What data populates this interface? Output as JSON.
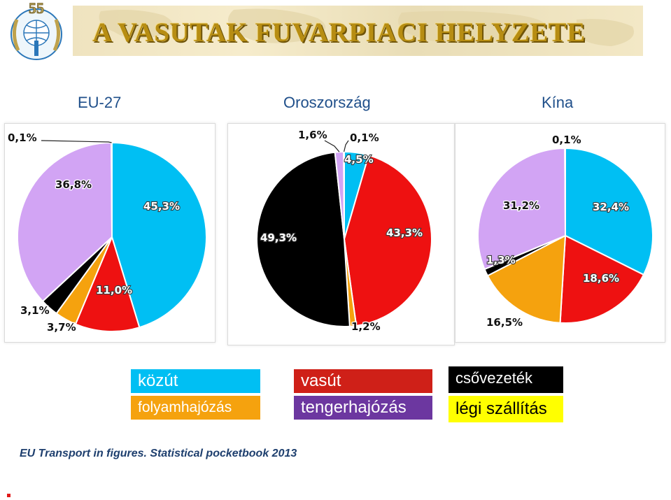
{
  "header": {
    "logo_number": "55",
    "title": "A VASUTAK FUVARPIACI HELYZETE"
  },
  "colors": {
    "kozut": "#00bff3",
    "vasut": "#ee1111",
    "csovezetek": "#000000",
    "folyamhajozas": "#f5a20e",
    "tengerhajozas": "#6c37a0",
    "legi": "#ffff00",
    "eu_other": "#d2a4f4"
  },
  "chart_data": [
    {
      "type": "pie",
      "title": "EU-27",
      "slices": [
        {
          "label": "közút",
          "value": 45.3,
          "text": "45,3%"
        },
        {
          "label": "vasút",
          "value": 11.0,
          "text": "11,0%"
        },
        {
          "label": "folyamhajózás",
          "value": 3.7,
          "text": "3,7%"
        },
        {
          "label": "csővezeték",
          "value": 3.1,
          "text": "3,1%"
        },
        {
          "label": "",
          "value": 36.8,
          "text": "36,8%"
        },
        {
          "label": "légi szállítás",
          "value": 0.1,
          "text": "0,1%"
        }
      ]
    },
    {
      "type": "pie",
      "title": "Oroszország",
      "slices": [
        {
          "label": "közút",
          "value": 4.5,
          "text": "4,5%"
        },
        {
          "label": "vasút",
          "value": 43.3,
          "text": "43,3%"
        },
        {
          "label": "folyamhajózás",
          "value": 1.2,
          "text": "1,2%"
        },
        {
          "label": "csővezeték",
          "value": 49.3,
          "text": "49,3%"
        },
        {
          "label": "",
          "value": 1.6,
          "text": "1,6%"
        },
        {
          "label": "légi szállítás",
          "value": 0.1,
          "text": "0,1%"
        }
      ]
    },
    {
      "type": "pie",
      "title": "Kína",
      "slices": [
        {
          "label": "közút",
          "value": 32.4,
          "text": "32,4%"
        },
        {
          "label": "vasút",
          "value": 18.6,
          "text": "18,6%"
        },
        {
          "label": "folyamhajózás",
          "value": 16.5,
          "text": "16,5%"
        },
        {
          "label": "csővezeték",
          "value": 1.3,
          "text": "1,3%"
        },
        {
          "label": "",
          "value": 31.2,
          "text": "31,2%"
        },
        {
          "label": "légi szállítás",
          "value": 0.1,
          "text": "0,1%"
        }
      ]
    }
  ],
  "legend": {
    "kozut": "közút",
    "vasut": "vasút",
    "csovezetek": "csővezeték",
    "folyamhajozas": "folyamhajózás",
    "tengerhajozas": "tengerhajózás",
    "legi": "légi szállítás"
  },
  "source": "EU Transport in figures. Statistical pocketbook 2013"
}
